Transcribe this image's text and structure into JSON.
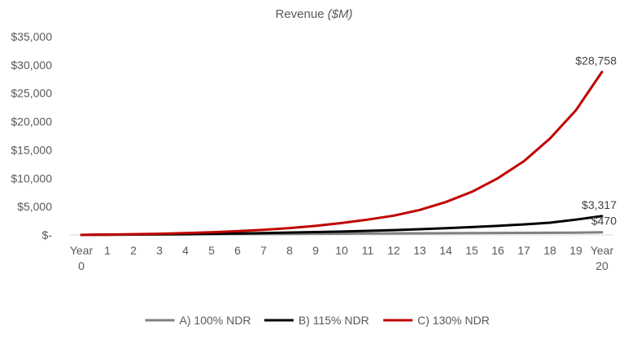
{
  "chart_data": {
    "type": "line",
    "title": "Revenue",
    "title_unit": "($M)",
    "x": [
      "Year 0",
      "1",
      "2",
      "3",
      "4",
      "5",
      "6",
      "7",
      "8",
      "9",
      "10",
      "11",
      "12",
      "13",
      "14",
      "15",
      "16",
      "17",
      "18",
      "19",
      "Year 20"
    ],
    "ylim": [
      0,
      35000
    ],
    "yticks": [
      0,
      5000,
      10000,
      15000,
      20000,
      25000,
      30000,
      35000
    ],
    "ytick_labels": [
      "$-",
      "$5,000",
      "$10,000",
      "$15,000",
      "$20,000",
      "$25,000",
      "$30,000",
      "$35,000"
    ],
    "grid": false,
    "legend_position": "bottom",
    "series": [
      {
        "name": "A) 100% NDR",
        "color": "#808080",
        "values": [
          8,
          31,
          54,
          76,
          98,
          120,
          141,
          162,
          183,
          203,
          224,
          244,
          263,
          283,
          302,
          321,
          340,
          358,
          377,
          395,
          470
        ],
        "end_label": "$470"
      },
      {
        "name": "B) 115% NDR",
        "color": "#000000",
        "values": [
          8,
          30,
          65,
          105,
          150,
          200,
          260,
          330,
          410,
          500,
          600,
          720,
          850,
          1000,
          1180,
          1380,
          1600,
          1850,
          2150,
          2700,
          3317
        ],
        "end_label": "$3,317"
      },
      {
        "name": "C) 130% NDR",
        "color": "#c00000",
        "values": [
          8,
          60,
          120,
          200,
          320,
          470,
          670,
          900,
          1200,
          1600,
          2100,
          2700,
          3400,
          4400,
          5800,
          7600,
          10000,
          13000,
          17000,
          22000,
          28758
        ],
        "end_label": "$28,758"
      }
    ]
  }
}
